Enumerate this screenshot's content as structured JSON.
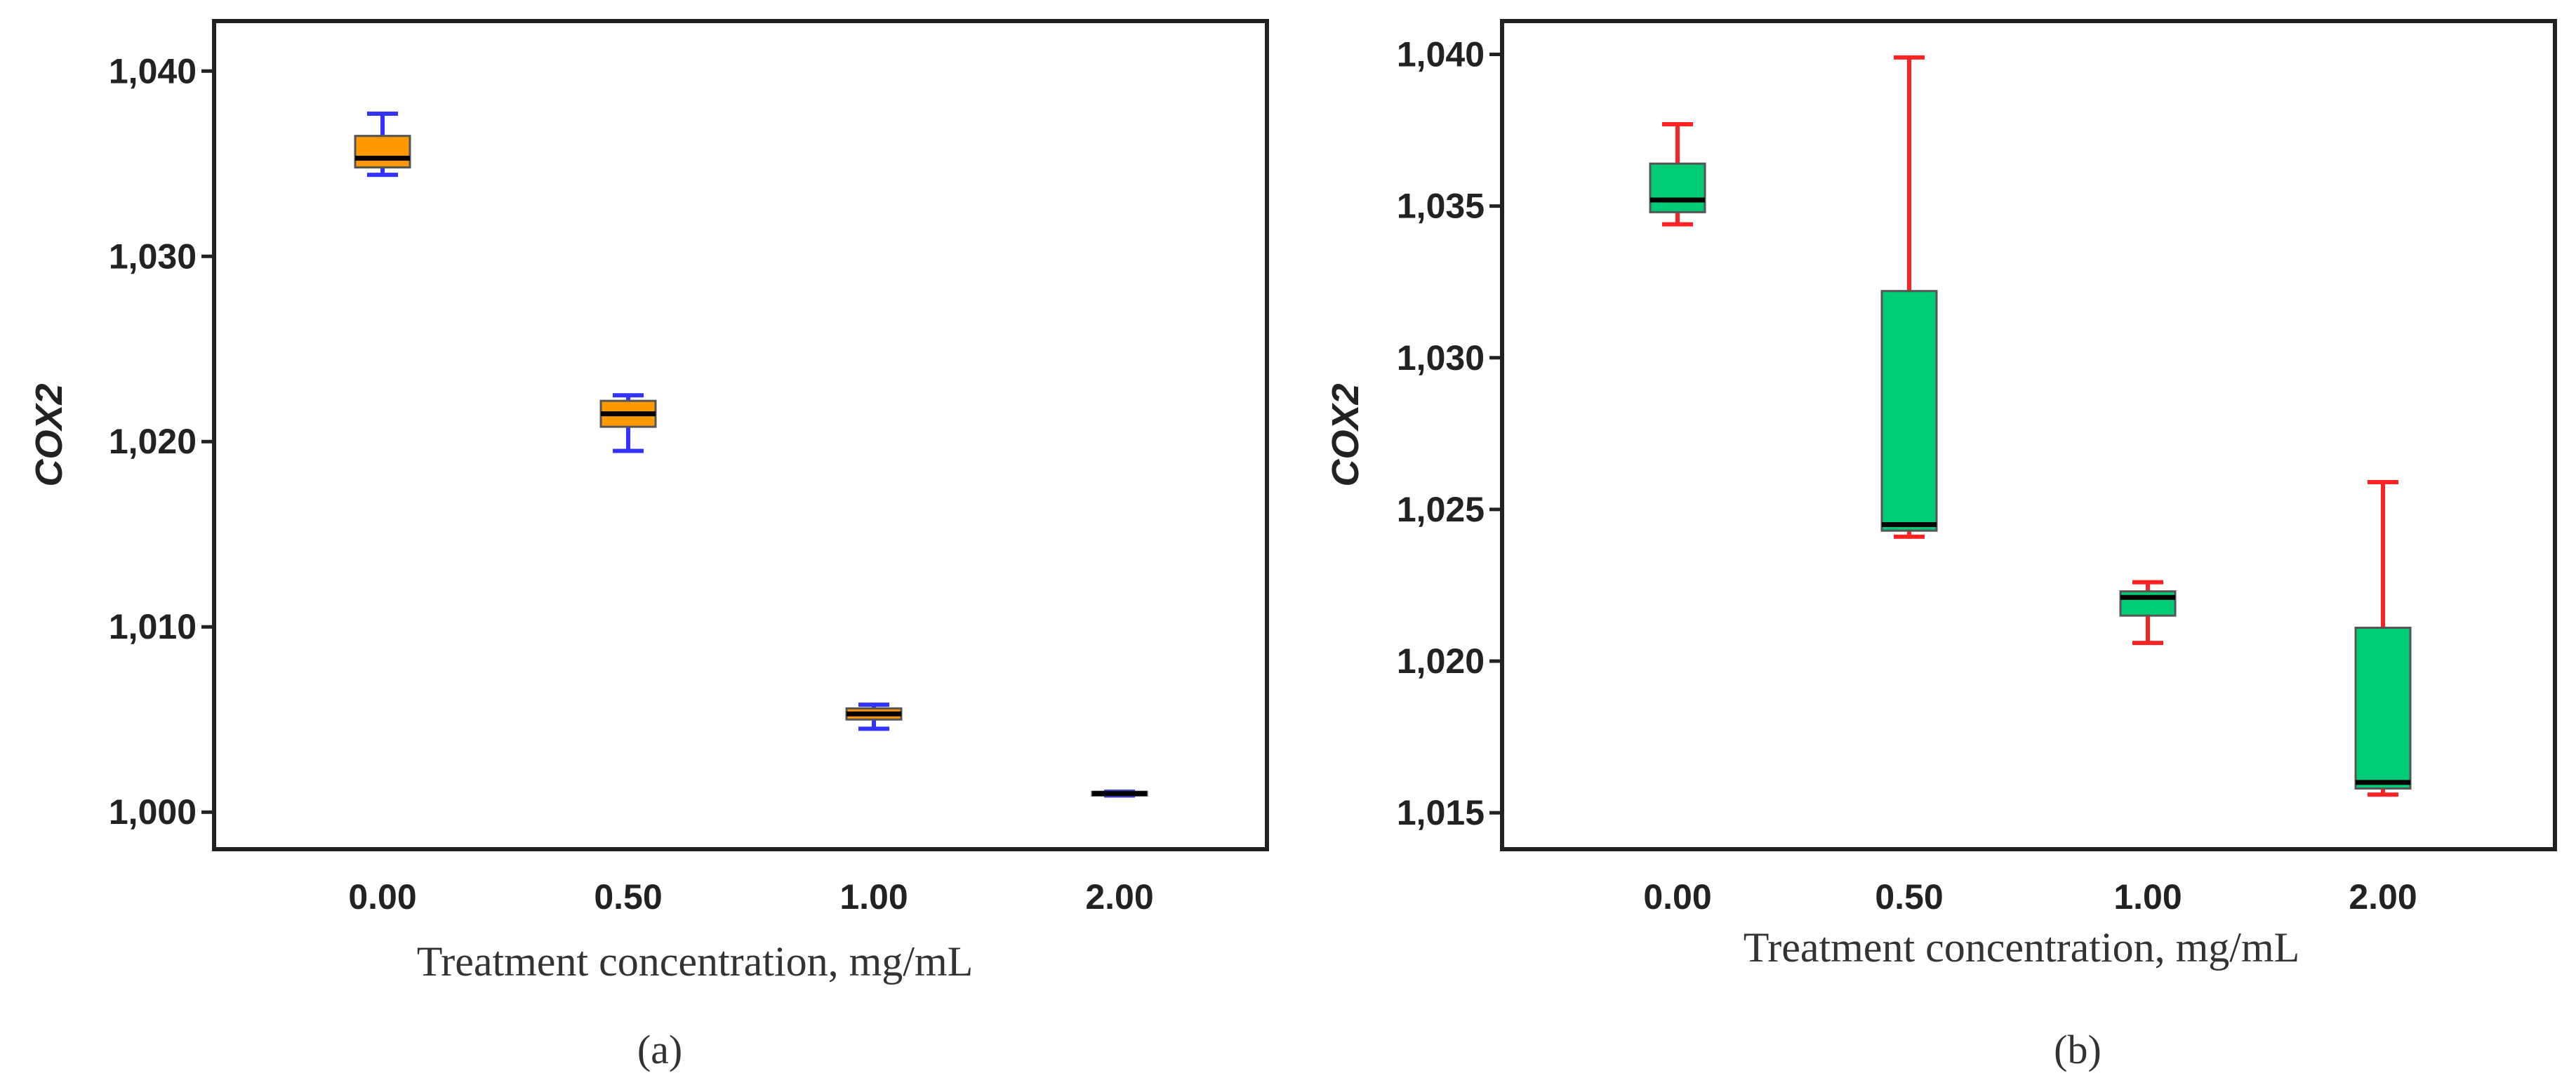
{
  "chart_data": [
    {
      "type": "boxplot",
      "panel_label": "(a)",
      "xlabel": "Treatment concentration, mg/mL",
      "ylabel": "COX2",
      "categories": [
        "0.00",
        "0.50",
        "1.00",
        "2.00"
      ],
      "y_ticks": [
        1.0,
        1.01,
        1.02,
        1.03,
        1.04
      ],
      "y_tick_labels": [
        "1,000",
        "1,010",
        "1,020",
        "1,030",
        "1,040"
      ],
      "ylim": [
        0.998,
        1.0427
      ],
      "boxes": [
        {
          "category": "0.00",
          "min": 1.0344,
          "q1": 1.0348,
          "median": 1.0353,
          "q3": 1.0365,
          "max": 1.0377
        },
        {
          "category": "0.50",
          "min": 1.0195,
          "q1": 1.0208,
          "median": 1.0215,
          "q3": 1.0222,
          "max": 1.0225
        },
        {
          "category": "1.00",
          "min": 1.0045,
          "q1": 1.005,
          "median": 1.0053,
          "q3": 1.0056,
          "max": 1.0058
        },
        {
          "category": "2.00",
          "min": 1.0009,
          "q1": 1.0009,
          "median": 1.001,
          "q3": 1.0011,
          "max": 1.0011
        }
      ],
      "colors": {
        "box_fill": "#ff9900",
        "whisker": "#3333ff",
        "median": "#000000",
        "frame": "#222222"
      }
    },
    {
      "type": "boxplot",
      "panel_label": "(b)",
      "xlabel": "Treatment concentration, mg/mL",
      "ylabel": "COX2",
      "categories": [
        "0.00",
        "0.50",
        "1.00",
        "2.00"
      ],
      "y_ticks": [
        1.015,
        1.02,
        1.025,
        1.03,
        1.035,
        1.04
      ],
      "y_tick_labels": [
        "1,015",
        "1,020",
        "1,025",
        "1,030",
        "1,035",
        "1,040"
      ],
      "ylim": [
        1.0138,
        1.0411
      ],
      "boxes": [
        {
          "category": "0.00",
          "min": 1.0344,
          "q1": 1.0348,
          "median": 1.0352,
          "q3": 1.0364,
          "max": 1.0377
        },
        {
          "category": "0.50",
          "min": 1.0241,
          "q1": 1.0243,
          "median": 1.0245,
          "q3": 1.0322,
          "max": 1.0399
        },
        {
          "category": "1.00",
          "min": 1.0206,
          "q1": 1.0215,
          "median": 1.0221,
          "q3": 1.0223,
          "max": 1.0226
        },
        {
          "category": "2.00",
          "min": 1.0156,
          "q1": 1.0158,
          "median": 1.016,
          "q3": 1.0211,
          "max": 1.0259
        }
      ],
      "colors": {
        "box_fill": "#00cc77",
        "whisker": "#ff2222",
        "median": "#000000",
        "frame": "#222222"
      }
    }
  ]
}
